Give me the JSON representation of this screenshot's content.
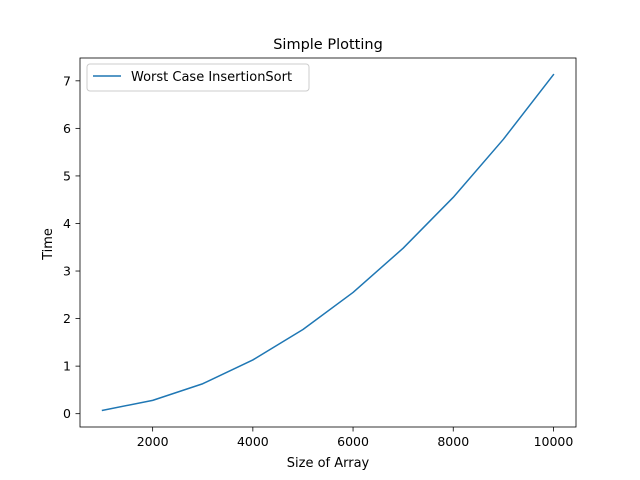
{
  "chart_data": {
    "type": "line",
    "title": "Simple Plotting",
    "xlabel": "Size of Array",
    "ylabel": "Time",
    "xlim": [
      550,
      10450
    ],
    "ylim": [
      -0.28,
      7.48
    ],
    "xticks": [
      2000,
      4000,
      6000,
      8000,
      10000
    ],
    "xtick_labels": [
      "2000",
      "4000",
      "6000",
      "8000",
      "10000"
    ],
    "yticks": [
      0,
      1,
      2,
      3,
      4,
      5,
      6,
      7
    ],
    "ytick_labels": [
      "0",
      "1",
      "2",
      "3",
      "4",
      "5",
      "6",
      "7"
    ],
    "grid": false,
    "legend_position": "top-left",
    "series": [
      {
        "name": "Worst Case InsertionSort",
        "color": "#1f77b4",
        "x": [
          1000,
          2000,
          3000,
          4000,
          5000,
          6000,
          7000,
          8000,
          9000,
          10000
        ],
        "y": [
          0.07,
          0.28,
          0.63,
          1.13,
          1.77,
          2.55,
          3.48,
          4.55,
          5.77,
          7.13
        ]
      }
    ]
  }
}
